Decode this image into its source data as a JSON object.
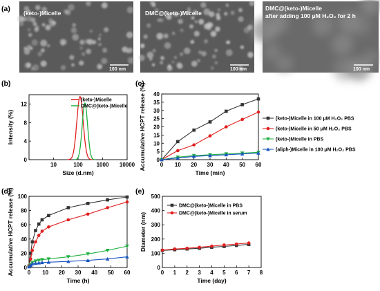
{
  "panel_labels": {
    "a": "(a)",
    "b": "(b)",
    "c": "(c)",
    "d": "(d)",
    "e": "(e)"
  },
  "micrographs": [
    {
      "title_line1": "(keto-)Micelle",
      "title_line2": "",
      "scale_bar": "100 nm"
    },
    {
      "title_line1": "DMC@(keto-)Micelle",
      "title_line2": "",
      "scale_bar": "100 nm"
    },
    {
      "title_line1": "DMC@(keto-)Micelle",
      "title_line2": "after adding 100 μM H₂O₂ for 2 h",
      "scale_bar": "100 nm"
    }
  ],
  "colors": {
    "black": "#333333",
    "red": "#e02020",
    "green": "#20b040",
    "blue": "#1a55c0",
    "micro_bg": "#5a5a5a"
  },
  "chart_data": [
    {
      "id": "b",
      "type": "line",
      "xlabel": "Size (d.nm)",
      "ylabel": "Intensity (%)",
      "x_scale": "log",
      "xlim": [
        1,
        10000
      ],
      "ylim": [
        0,
        14
      ],
      "x_ticks": [
        "1",
        "10",
        "100",
        "1000",
        "10000"
      ],
      "y_ticks": [
        "0",
        "4",
        "8",
        "12"
      ],
      "legend_position": "top-right",
      "series": [
        {
          "name": "(keto-)Micelle",
          "color": "#e02020",
          "peak_x": 120,
          "peak_y": 13.6,
          "log_width": 0.13
        },
        {
          "name": "DMC@(keto-)Micelle",
          "color": "#20b040",
          "peak_x": 190,
          "peak_y": 12.2,
          "log_width": 0.11
        }
      ]
    },
    {
      "id": "c",
      "type": "line",
      "xlabel": "Time (min)",
      "ylabel": "Accumulative HCPT release (%)",
      "xlim": [
        0,
        60
      ],
      "ylim": [
        0,
        40
      ],
      "x_ticks": [
        "0",
        "10",
        "20",
        "30",
        "40",
        "50",
        "60"
      ],
      "y_ticks": [
        "0",
        "5",
        "10",
        "15",
        "20",
        "25",
        "30",
        "35",
        "40"
      ],
      "legend_position": "right",
      "x": [
        0,
        10,
        20,
        30,
        40,
        50,
        60
      ],
      "series": [
        {
          "name": "(keto-)Micelle in 100 μM H₂O₂ PBS",
          "color": "#333333",
          "marker": "square",
          "values": [
            0,
            11,
            18,
            23,
            29.5,
            33.5,
            37
          ]
        },
        {
          "name": "(keto-)Micelle in 50 μM H₂O₂ PBS",
          "color": "#e02020",
          "marker": "circle",
          "values": [
            0,
            5.5,
            9,
            14.5,
            20,
            24.5,
            29
          ]
        },
        {
          "name": "(keto-)Micelle in PBS",
          "color": "#20b040",
          "marker": "triangle-down",
          "values": [
            0,
            1.5,
            2.5,
            3,
            3.5,
            4,
            4.5
          ]
        },
        {
          "name": "(aliph-)Micelle in 100 μM H₂O₂ PBS",
          "color": "#1a55c0",
          "marker": "triangle",
          "values": [
            0,
            1,
            2,
            2.5,
            3,
            3.5,
            4
          ]
        }
      ]
    },
    {
      "id": "d",
      "type": "line",
      "xlabel": "Time (h)",
      "ylabel": "Accumulative HCPT release (%)",
      "xlim": [
        0,
        60
      ],
      "ylim": [
        0,
        100
      ],
      "x_ticks": [
        "0",
        "10",
        "20",
        "30",
        "40",
        "50",
        "60"
      ],
      "y_ticks": [
        "0",
        "20",
        "40",
        "60",
        "80",
        "100"
      ],
      "x": [
        0,
        1,
        2,
        4,
        6,
        8,
        12,
        24,
        36,
        48,
        60
      ],
      "series": [
        {
          "name": "",
          "color": "#333333",
          "marker": "square",
          "values": [
            2,
            20,
            36,
            52,
            61,
            67,
            73,
            84,
            90,
            95,
            99
          ]
        },
        {
          "name": "",
          "color": "#e02020",
          "marker": "circle",
          "values": [
            2,
            12,
            24,
            36,
            45,
            51,
            57,
            67,
            75,
            84,
            92
          ]
        },
        {
          "name": "",
          "color": "#20b040",
          "marker": "triangle-down",
          "values": [
            1,
            4,
            7,
            9,
            10,
            11,
            12,
            15,
            19,
            24,
            30
          ]
        },
        {
          "name": "",
          "color": "#1a55c0",
          "marker": "triangle",
          "values": [
            1,
            3,
            5,
            6,
            6.5,
            7,
            7.5,
            8.5,
            10,
            12,
            15
          ]
        }
      ]
    },
    {
      "id": "e",
      "type": "line",
      "xlabel": "Time (day)",
      "ylabel": "Diameter (nm)",
      "xlim": [
        0,
        8
      ],
      "ylim": [
        0,
        500
      ],
      "x_ticks": [
        "0",
        "1",
        "2",
        "3",
        "4",
        "5",
        "6",
        "7",
        "8"
      ],
      "y_ticks": [
        "0",
        "100",
        "200",
        "300",
        "400",
        "500"
      ],
      "legend_position": "top-left",
      "x": [
        0,
        1,
        2,
        3,
        4,
        5,
        6,
        7
      ],
      "series": [
        {
          "name": "DMC@(keto-)Micelle in PBS",
          "color": "#333333",
          "marker": "square",
          "values": [
            120,
            125,
            130,
            135,
            142,
            148,
            155,
            162
          ]
        },
        {
          "name": "DMC@(keto-)Micelle in serum",
          "color": "#e02020",
          "marker": "circle",
          "values": [
            122,
            130,
            135,
            142,
            150,
            158,
            165,
            172
          ]
        }
      ]
    }
  ]
}
